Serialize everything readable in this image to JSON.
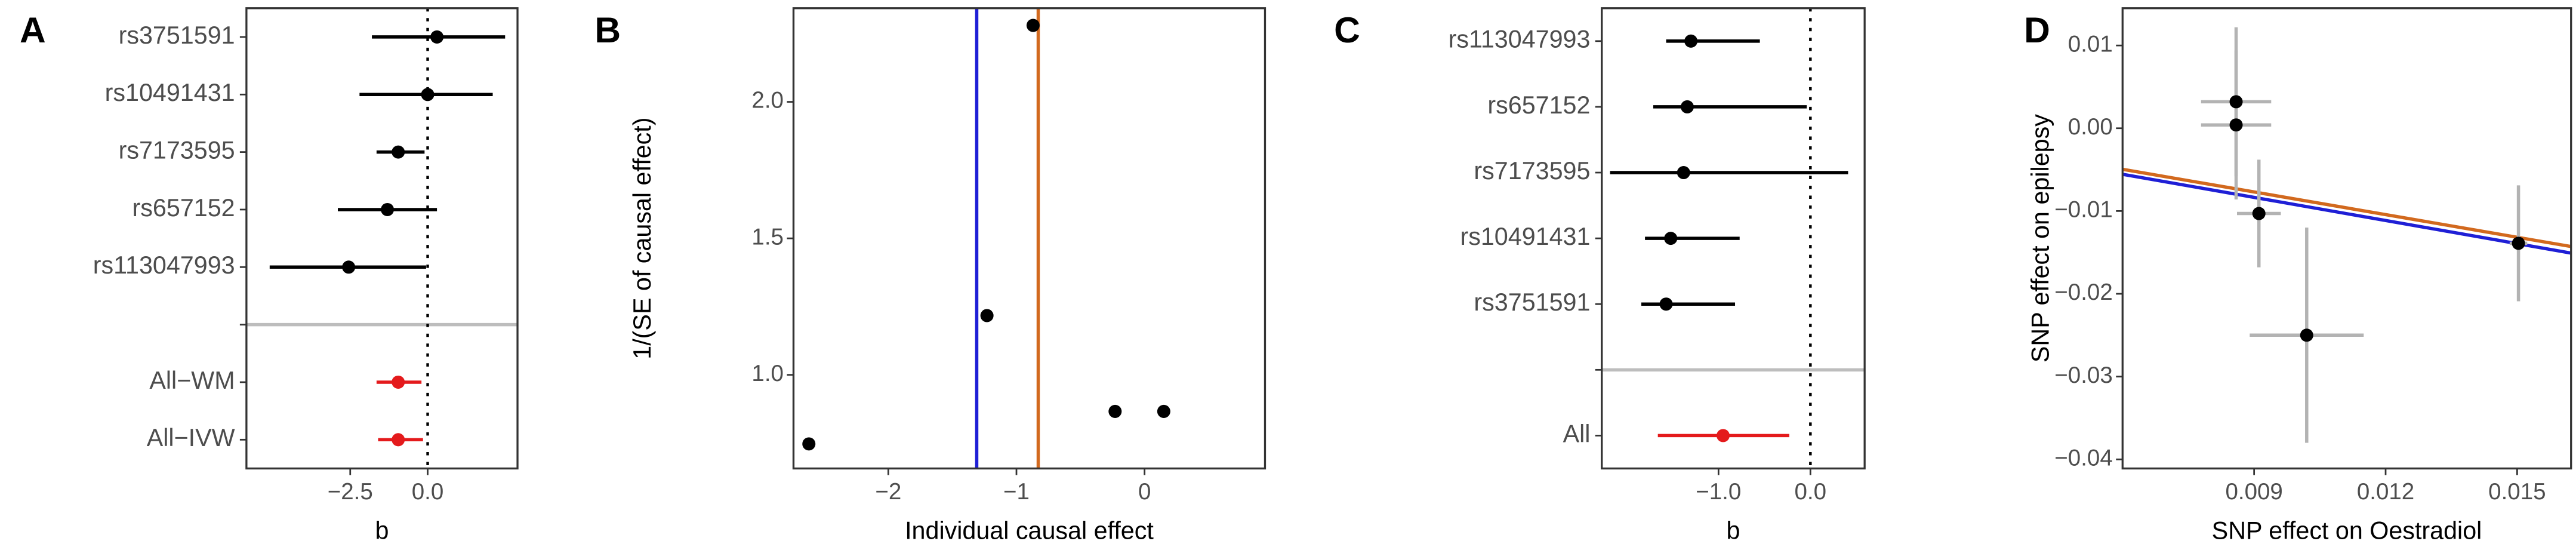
{
  "chart_data": [
    {
      "type": "forest",
      "panel_label": "A",
      "x_label": "b",
      "categories": [
        "rs3751591",
        "rs10491431",
        "rs7173595",
        "rs657152",
        "rs113047993",
        null,
        "All−WM",
        "All−IVW"
      ],
      "values": [
        0.3,
        0.0,
        -0.95,
        -1.3,
        -2.55,
        null,
        -0.95,
        -0.95
      ],
      "lower": [
        -1.8,
        -2.2,
        -1.65,
        -2.9,
        -5.1,
        null,
        -1.65,
        -1.6
      ],
      "upper": [
        2.5,
        2.1,
        -0.1,
        0.3,
        -0.05,
        null,
        -0.2,
        -0.15
      ],
      "point_colors": [
        "#000000",
        "#000000",
        "#000000",
        "#000000",
        "#000000",
        null,
        "#e41a1c",
        "#e41a1c"
      ],
      "zero_line": 0,
      "xlim": [
        -5.85,
        2.9
      ],
      "xticks": [
        {
          "value": -2.5,
          "label": "−2.5"
        },
        {
          "value": 0,
          "label": "0.0"
        }
      ]
    },
    {
      "type": "scatter",
      "panel_label": "B",
      "x_label": "Individual causal effect",
      "y_label": "1/(SE of causal effect)",
      "x": [
        -2.62,
        -1.23,
        -0.87,
        -0.23,
        0.15
      ],
      "values": [
        0.747,
        1.217,
        2.28,
        0.866,
        0.866
      ],
      "color": "#000000",
      "vlines": [
        {
          "value": -1.31,
          "color": "#1f1fd6"
        },
        {
          "value": -0.83,
          "color": "#d2691e"
        }
      ],
      "xlim": [
        -2.74,
        0.94
      ],
      "ylim": [
        0.657,
        2.343
      ],
      "xticks": [
        {
          "value": -2,
          "label": "−2"
        },
        {
          "value": -1,
          "label": "−1"
        },
        0
      ],
      "yticks": [
        {
          "value": 1,
          "label": "1.0"
        },
        1.5,
        {
          "value": 2,
          "label": "2.0"
        }
      ]
    },
    {
      "type": "forest",
      "panel_label": "C",
      "x_label": "b",
      "categories": [
        "rs113047993",
        "rs657152",
        "rs7173595",
        "rs10491431",
        "rs3751591",
        null,
        "All"
      ],
      "values": [
        -1.3,
        -1.34,
        -1.38,
        -1.52,
        -1.57,
        null,
        -0.95
      ],
      "lower": [
        -1.57,
        -1.71,
        -2.18,
        -1.8,
        -1.84,
        null,
        -1.66
      ],
      "upper": [
        -0.55,
        -0.04,
        0.41,
        -0.77,
        -0.82,
        null,
        -0.23
      ],
      "point_colors": [
        "#000000",
        "#000000",
        "#000000",
        "#000000",
        "#000000",
        null,
        "#e41a1c"
      ],
      "zero_line": 0,
      "xlim": [
        -2.27,
        0.59
      ],
      "xticks": [
        {
          "value": -1,
          "label": "−1.0"
        },
        {
          "value": 0,
          "label": "0.0"
        }
      ]
    },
    {
      "type": "scatter",
      "panel_label": "D",
      "x_label": "SNP effect on Oestradiol",
      "y_label": "SNP effect on epilepsy",
      "x": [
        0.00859,
        0.00859,
        0.00911,
        0.0102,
        0.01503
      ],
      "values": [
        0.0032,
        0.0004,
        -0.0103,
        -0.025,
        -0.0139
      ],
      "xerr": [
        0.0008,
        0.0008,
        0.0005,
        0.0013,
        0.0002
      ],
      "yerr": [
        0.009,
        0.009,
        0.0065,
        0.013,
        0.007
      ],
      "color": "#000000",
      "error_color": "#b3b3b3",
      "lines": [
        {
          "color": "#d2691e",
          "x": [
            0.006,
            0.01623
          ],
          "y": [
            -0.00496,
            -0.01429
          ]
        },
        {
          "color": "#1f1fd6",
          "x": [
            0.006,
            0.01623
          ],
          "y": [
            -0.00556,
            -0.01508
          ]
        }
      ],
      "xlim": [
        0.006,
        0.01623
      ],
      "ylim": [
        -0.0411,
        0.0145
      ],
      "xticks": [
        0.009,
        0.012,
        0.015
      ],
      "yticks": [
        {
          "value": -0.04,
          "label": "−0.04"
        },
        {
          "value": -0.03,
          "label": "−0.03"
        },
        {
          "value": -0.02,
          "label": "−0.02"
        },
        {
          "value": -0.01,
          "label": "−0.01"
        },
        {
          "value": 0,
          "label": "0.00"
        },
        0.01
      ]
    }
  ]
}
